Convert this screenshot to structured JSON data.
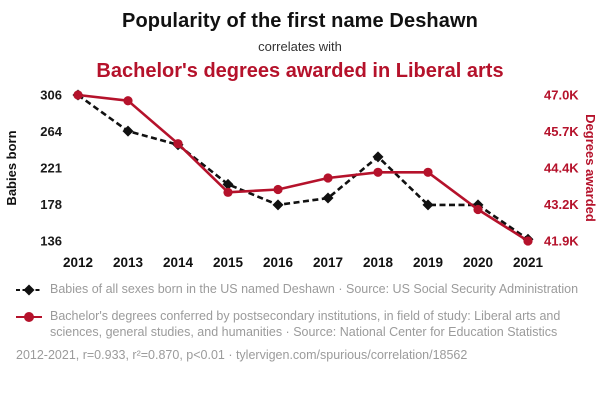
{
  "header": {
    "title": "Popularity of the first name Deshawn",
    "subtitle": "correlates with",
    "title2": "Bachelor's degrees awarded in Liberal arts"
  },
  "colors": {
    "accent": "#b5122b",
    "series1": "#111111",
    "legend_text": "#9b9b9b"
  },
  "chart_data": {
    "type": "line",
    "x": [
      "2012",
      "2013",
      "2014",
      "2015",
      "2016",
      "2017",
      "2018",
      "2019",
      "2020",
      "2021"
    ],
    "series": [
      {
        "name": "Babies of all sexes born in the US named Deshawn",
        "axis": "left",
        "color": "#111111",
        "line_style": "dashed",
        "marker": "diamond",
        "values": [
          306,
          264,
          248,
          202,
          178,
          186,
          234,
          178,
          178,
          138
        ]
      },
      {
        "name": "Bachelor's degrees conferred in field of study: Liberal arts and sciences, general studies, and humanities",
        "axis": "right",
        "color": "#b5122b",
        "line_style": "solid",
        "marker": "circle",
        "values": [
          47000,
          46800,
          45300,
          43600,
          43700,
          44100,
          44300,
          44300,
          43000,
          41900
        ]
      }
    ],
    "left_axis": {
      "label": "Babies born",
      "ticks": [
        "306",
        "264",
        "221",
        "178",
        "136"
      ],
      "min": 136,
      "max": 306
    },
    "right_axis": {
      "label": "Degrees awarded",
      "ticks": [
        "47.0K",
        "45.7K",
        "44.4K",
        "43.2K",
        "41.9K"
      ],
      "min": 41900,
      "max": 47000
    },
    "grid": false,
    "legend_position": "bottom"
  },
  "legend": {
    "items": [
      {
        "marker": "diamond",
        "text": "Babies of all sexes born in the US named Deshawn · Source: US Social Security Administration"
      },
      {
        "marker": "circle",
        "text": "Bachelor's degrees conferred by postsecondary institutions, in field of study: Liberal arts and sciences, general studies, and humanities · Source: National Center for Education Statistics"
      }
    ]
  },
  "footer": {
    "text": "2012-2021, r=0.933, r²=0.870, p<0.01 · tylervigen.com/spurious/correlation/18562"
  }
}
